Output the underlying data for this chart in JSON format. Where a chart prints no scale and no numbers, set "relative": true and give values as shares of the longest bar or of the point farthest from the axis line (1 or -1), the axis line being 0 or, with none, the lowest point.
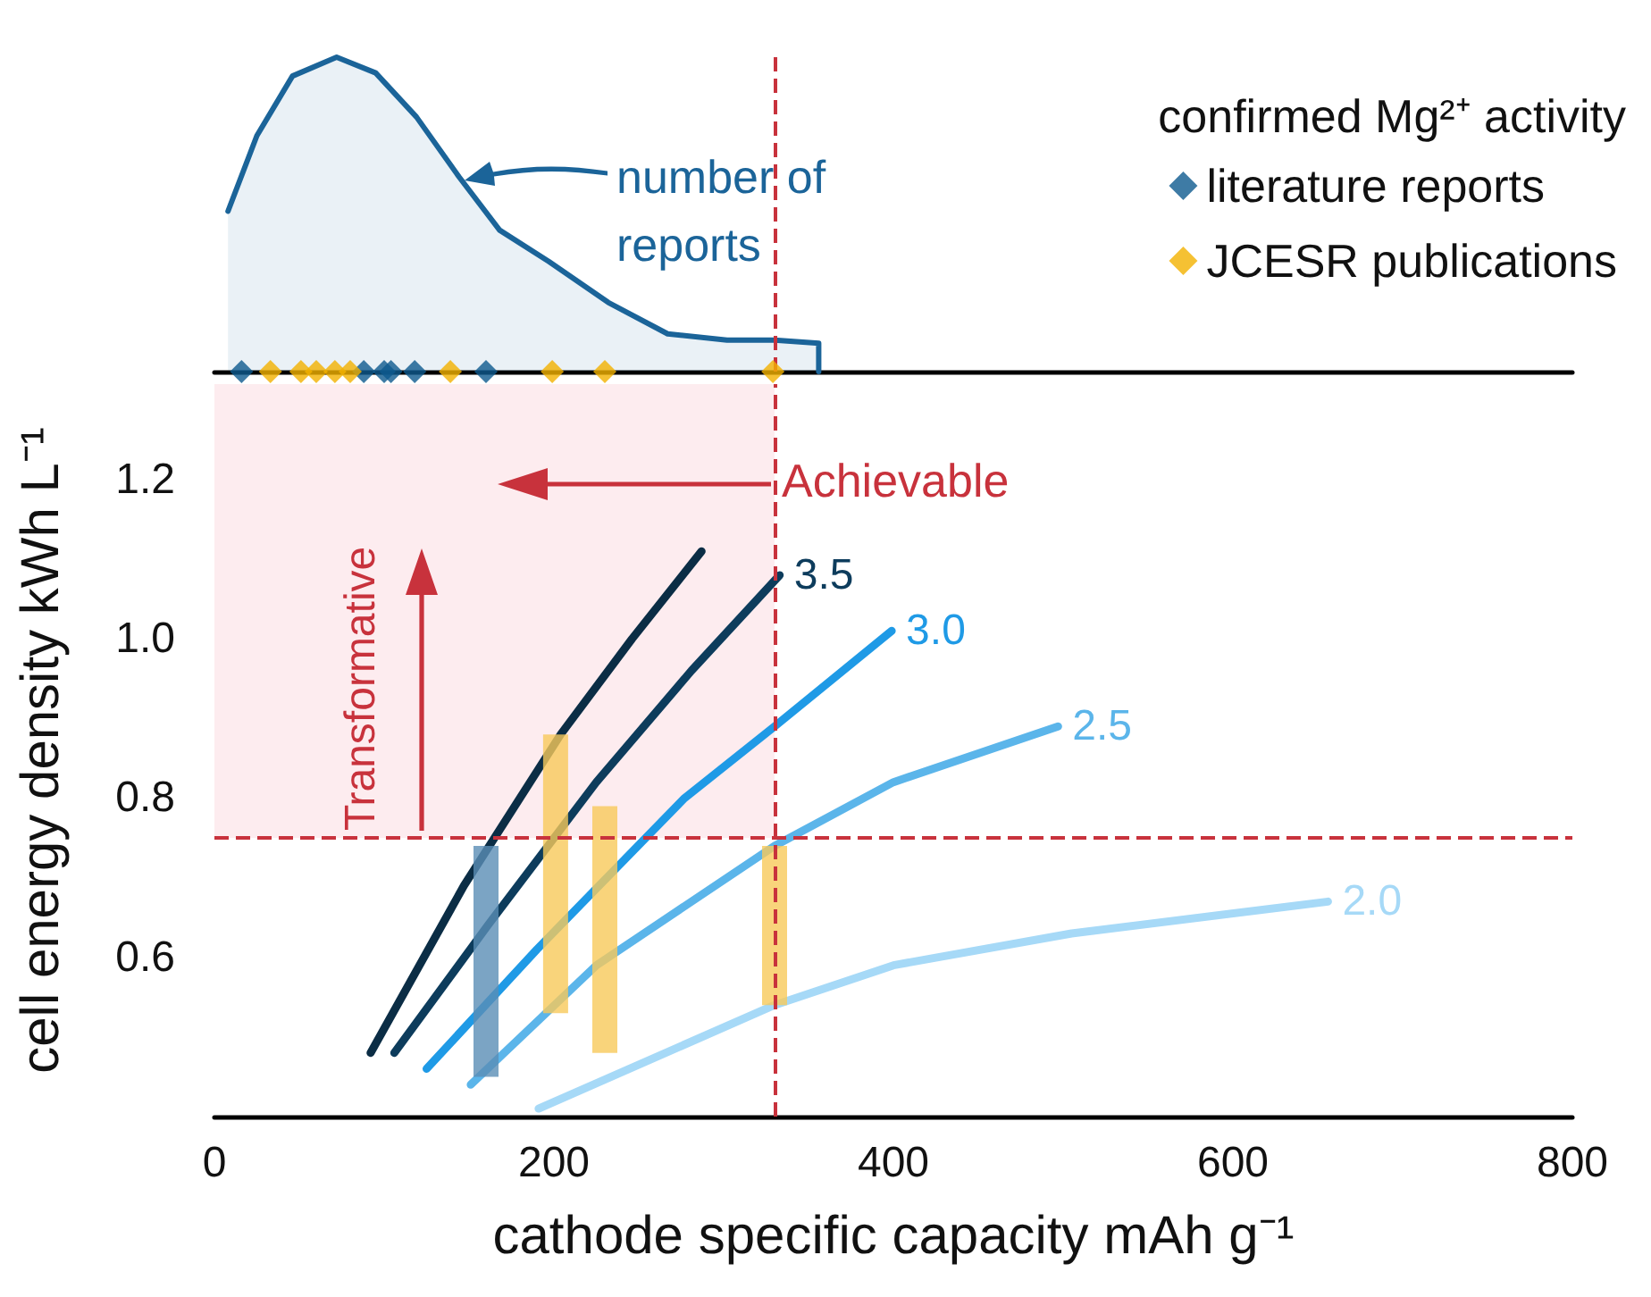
{
  "chart_data": [
    {
      "type": "area",
      "relative": true,
      "xlim": [
        0,
        800
      ],
      "xticks": [
        0,
        200,
        400,
        600,
        800
      ],
      "tick_labels": false,
      "legend": "right",
      "legend_title": "confirmed Mg²⁺ activity",
      "annotations": [
        "number of reports"
      ],
      "ref_lines": [
        {
          "axis": "x",
          "value": 330,
          "color": "#c8323c",
          "line_style": "dashed"
        }
      ],
      "series": [
        {
          "color": "#1b6499",
          "x": [
            8,
            25,
            46,
            72,
            95,
            119,
            144,
            168,
            197,
            232,
            267,
            302,
            330,
            356,
            356
          ],
          "values": [
            0.51,
            0.75,
            0.94,
            1,
            0.95,
            0.81,
            0.62,
            0.45,
            0.35,
            0.22,
            0.12,
            0.1,
            0.1,
            0.09,
            0
          ]
        },
        {
          "type": "scatter",
          "marker": "diamond",
          "name": "literature reports",
          "color": "#0e5a8e",
          "x": [
            16,
            88,
            100,
            104,
            118,
            160
          ],
          "values": [
            0,
            0,
            0,
            0,
            0,
            0
          ]
        },
        {
          "type": "scatter",
          "marker": "diamond",
          "name": "JCESR publications",
          "color": "#f2b200",
          "x": [
            33,
            51,
            60,
            71,
            80,
            139,
            199,
            230,
            329
          ],
          "values": [
            0,
            0,
            0,
            0,
            0,
            0,
            0,
            0,
            0
          ]
        }
      ]
    },
    {
      "type": "line",
      "xlabel": "cathode specific capacity mAh g⁻¹",
      "ylabel": "cell energy density kWh L⁻¹",
      "xlim": [
        0,
        800
      ],
      "xticks": [
        0,
        200,
        400,
        600,
        800
      ],
      "ylim": [
        0.4,
        1.32
      ],
      "yticks": [
        0.6,
        0.8,
        {
          "value": 1,
          "label": "1.0"
        },
        1.2
      ],
      "grid": false,
      "legend": false,
      "ref_lines": [
        {
          "axis": "x",
          "value": 330,
          "label": "Achievable",
          "color": "#c8323c",
          "line_style": "dashed"
        },
        {
          "axis": "y",
          "value": 0.75,
          "label": "Transformative",
          "color": "#c8323c",
          "line_style": "dashed"
        }
      ],
      "bands": [
        {
          "axis": "y",
          "from": 0.75,
          "to": 1.32,
          "color": "#fdecef"
        }
      ],
      "series": [
        {
          "color": "#0b2d45",
          "x": [
            92,
            147,
            204,
            246,
            287
          ],
          "values": [
            0.48,
            0.69,
            0.88,
            1.0,
            1.11
          ]
        },
        {
          "name": "3.5",
          "color": "#0d3c5c",
          "x": [
            106,
            161,
            225,
            281,
            333
          ],
          "values": [
            0.48,
            0.64,
            0.82,
            0.96,
            1.08
          ]
        },
        {
          "name": "3.0",
          "color": "#1f9ae6",
          "x": [
            125,
            190,
            277,
            330,
            399
          ],
          "values": [
            0.46,
            0.61,
            0.8,
            0.89,
            1.01
          ]
        },
        {
          "name": "2.5",
          "color": "#5bb5ea",
          "x": [
            151,
            225,
            330,
            400,
            497
          ],
          "values": [
            0.44,
            0.59,
            0.74,
            0.82,
            0.89
          ]
        },
        {
          "name": "2.0",
          "color": "#a6d9f7",
          "x": [
            191,
            330,
            400,
            505,
            656
          ],
          "values": [
            0.41,
            0.54,
            0.59,
            0.63,
            0.67
          ]
        },
        {
          "type": "bar",
          "x": [
            160,
            201,
            230,
            330
          ],
          "base": [
            0.45,
            0.53,
            0.48,
            0.54
          ],
          "values": [
            0.29,
            0.35,
            0.31,
            0.2
          ],
          "colors": [
            "#5a8db5",
            "#f8c95a",
            "#f8c95a",
            "#f8c95a"
          ]
        }
      ]
    }
  ]
}
